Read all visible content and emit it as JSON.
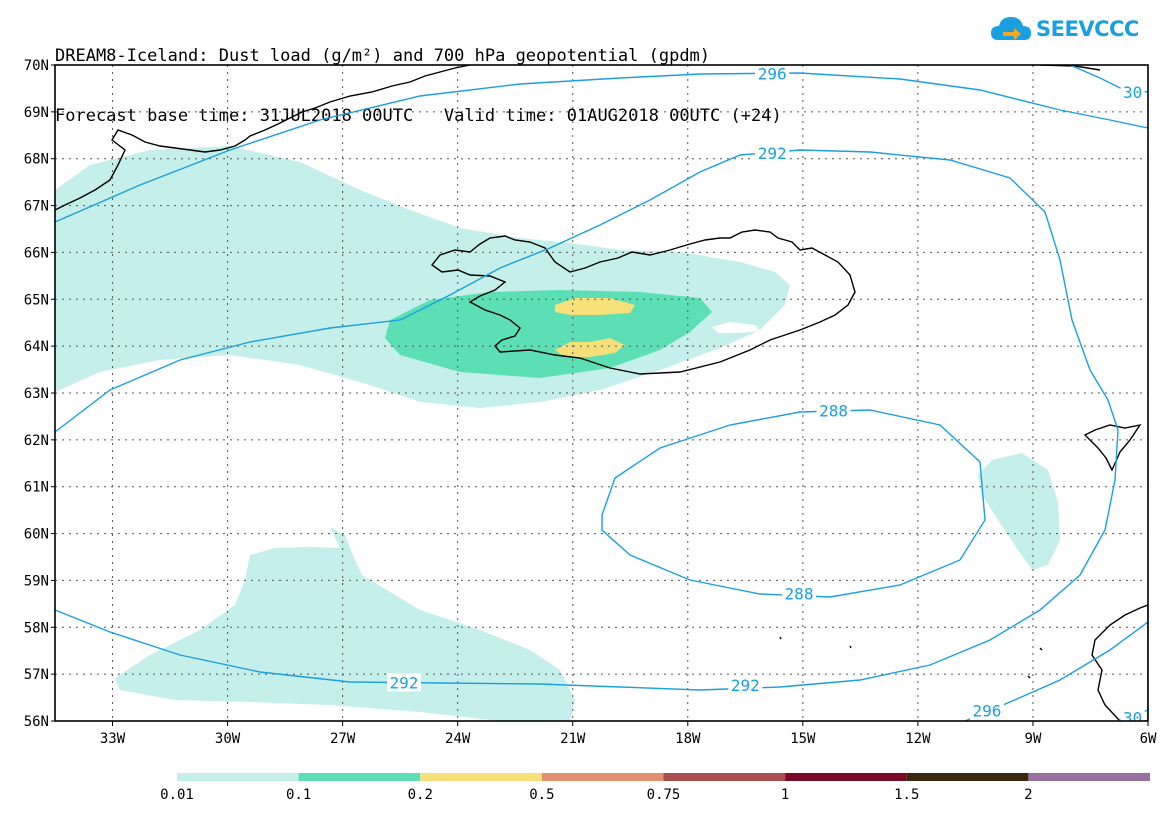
{
  "title": {
    "line1": "DREAM8-Iceland: Dust load (g/m²) and 700 hPa geopotential (gpdm)",
    "line2": "Forecast base time: 31JUL2018 00UTC   Valid time: 01AUG2018 00UTC (+24)"
  },
  "logo": {
    "text": "SEEVCCC",
    "icon": "cloud-arrow-icon"
  },
  "map": {
    "lon_range": [
      -34.5,
      -6
    ],
    "lat_range": [
      56,
      70
    ],
    "lat_labels": [
      "70N",
      "69N",
      "68N",
      "67N",
      "66N",
      "65N",
      "64N",
      "63N",
      "62N",
      "61N",
      "60N",
      "59N",
      "58N",
      "57N",
      "56N"
    ],
    "lon_labels": [
      "33W",
      "30W",
      "27W",
      "24W",
      "21W",
      "18W",
      "15W",
      "12W",
      "9W",
      "6W"
    ],
    "grid": "dotted"
  },
  "contours": {
    "color": "#1aa0e0",
    "labels": [
      {
        "text": "296",
        "lon": -15.8,
        "lat": 69.8
      },
      {
        "text": "30",
        "lon": -6.4,
        "lat": 69.4
      },
      {
        "text": "292",
        "lon": -15.8,
        "lat": 68.1
      },
      {
        "text": "288",
        "lon": -14.2,
        "lat": 62.6
      },
      {
        "text": "288",
        "lon": -15.1,
        "lat": 58.7
      },
      {
        "text": "292",
        "lon": -25.4,
        "lat": 56.8
      },
      {
        "text": "292",
        "lon": -16.5,
        "lat": 56.75
      },
      {
        "text": "296",
        "lon": -10.2,
        "lat": 56.2
      },
      {
        "text": "30",
        "lon": -6.4,
        "lat": 56.05
      }
    ]
  },
  "colorbar": {
    "labels": [
      "0.01",
      "0.1",
      "0.2",
      "0.5",
      "0.75",
      "1",
      "1.5",
      "2"
    ],
    "colors": [
      "#c4efea",
      "#5cdfb4",
      "#f5e07a",
      "#e39070",
      "#a85050",
      "#7a0a2a",
      "#3a2810",
      "#9a70a0"
    ]
  }
}
